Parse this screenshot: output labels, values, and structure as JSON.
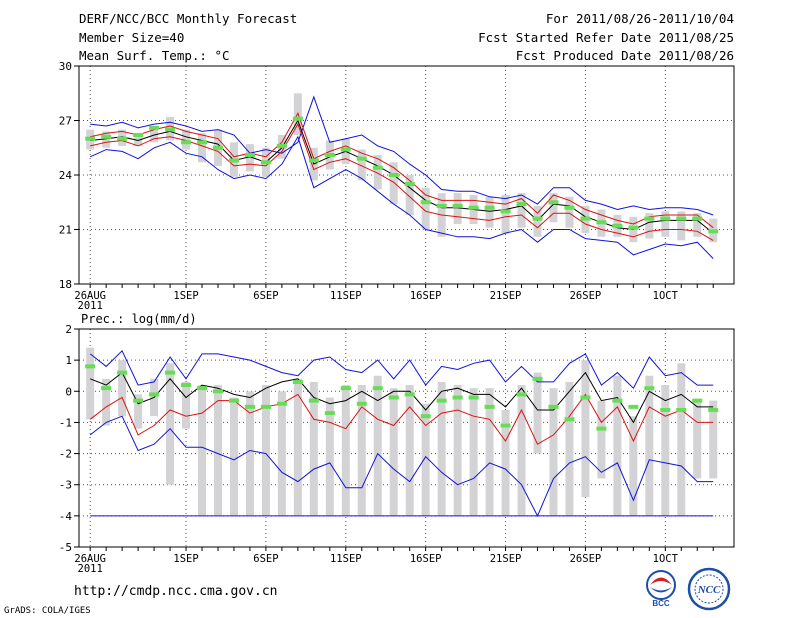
{
  "header": {
    "title": "DERF/NCC/BCC Monthly Forecast",
    "member_size": "Member Size=40",
    "variable": "Mean Surf. Temp.: °C",
    "period": "For 2011/08/26-2011/10/04",
    "started": "Fcst Started Refer Date 2011/08/25",
    "produced": "Fcst Produced Date 2011/08/26"
  },
  "footer": {
    "url": "http://cmdp.ncc.cma.gov.cn",
    "grads": "GrADS: COLA/IGES",
    "logo1_label": "BCC",
    "logo2_label": "NCC"
  },
  "colors": {
    "box": "#d3d3d6",
    "median": "#66dd55",
    "mean": "#000000",
    "std": "#dd1111",
    "extreme": "#1111dd",
    "grid": "#555555"
  },
  "chart_data": [
    {
      "type": "line",
      "title": "Mean Surf. Temp.: °C",
      "ylim": [
        18,
        30
      ],
      "yticks": [
        "18",
        "21",
        "24",
        "27",
        "30"
      ],
      "x": [
        1,
        2,
        3,
        4,
        5,
        6,
        7,
        8,
        9,
        10,
        11,
        12,
        13,
        14,
        15,
        16,
        17,
        18,
        19,
        20,
        21,
        22,
        23,
        24,
        25,
        26,
        27,
        28,
        29,
        30,
        31,
        32,
        33,
        34,
        35,
        36,
        37,
        38,
        39,
        40
      ],
      "xtick_labels": [
        "26AUG",
        "1SEP",
        "6SEP",
        "11SEP",
        "16SEP",
        "21SEP",
        "26SEP",
        "1OCT"
      ],
      "xtick_days": [
        1,
        7,
        12,
        17,
        22,
        27,
        32,
        37
      ],
      "xtick_sublabel": "2011",
      "series": [
        {
          "name": "max",
          "values": [
            26.8,
            26.7,
            26.9,
            26.6,
            26.8,
            26.9,
            26.7,
            26.4,
            26.5,
            26.2,
            25.2,
            25.4,
            25.2,
            25.8,
            28.3,
            25.8,
            26.0,
            26.2,
            25.6,
            25.3,
            24.6,
            24.0,
            23.2,
            23.1,
            23.1,
            22.8,
            22.7,
            22.9,
            22.4,
            23.3,
            23.3,
            22.6,
            22.4,
            22.1,
            22.3,
            22.1,
            22.2,
            22.2,
            22.1,
            21.8
          ]
        },
        {
          "name": "mean_plus_std",
          "values": [
            26.1,
            26.3,
            26.4,
            26.2,
            26.5,
            26.7,
            26.4,
            26.2,
            26.0,
            25.0,
            25.2,
            25.0,
            25.8,
            27.4,
            24.9,
            25.3,
            25.6,
            25.2,
            24.9,
            24.4,
            23.7,
            22.9,
            22.6,
            22.6,
            22.6,
            22.5,
            22.4,
            22.7,
            21.9,
            22.9,
            22.6,
            22.1,
            21.8,
            21.5,
            21.3,
            21.7,
            21.8,
            21.8,
            21.8,
            21.1
          ]
        },
        {
          "name": "mean",
          "values": [
            25.9,
            26.0,
            26.1,
            25.9,
            26.2,
            26.4,
            26.1,
            25.9,
            25.7,
            24.8,
            25.0,
            24.7,
            25.5,
            27.0,
            24.6,
            25.0,
            25.3,
            24.9,
            24.5,
            24.0,
            23.3,
            22.6,
            22.2,
            22.2,
            22.1,
            22.0,
            22.1,
            22.3,
            21.5,
            22.4,
            22.3,
            21.7,
            21.4,
            21.1,
            21.0,
            21.4,
            21.5,
            21.5,
            21.5,
            20.8
          ]
        },
        {
          "name": "median",
          "values": [
            26.0,
            26.1,
            26.0,
            26.2,
            26.6,
            26.5,
            25.8,
            25.8,
            25.5,
            24.8,
            25.1,
            24.7,
            25.6,
            27.1,
            24.8,
            25.1,
            25.4,
            24.9,
            24.4,
            24.0,
            23.5,
            22.5,
            22.3,
            22.3,
            22.2,
            22.2,
            22.0,
            22.4,
            21.6,
            22.5,
            22.2,
            21.6,
            21.4,
            21.2,
            21.1,
            21.6,
            21.6,
            21.6,
            21.6,
            20.9
          ]
        },
        {
          "name": "mean_minus_std",
          "values": [
            25.6,
            25.8,
            25.9,
            25.6,
            26.0,
            26.1,
            25.9,
            25.6,
            25.3,
            24.5,
            24.6,
            24.5,
            25.3,
            26.8,
            24.3,
            24.7,
            24.9,
            24.5,
            24.1,
            23.6,
            22.8,
            22.0,
            21.8,
            21.7,
            21.6,
            21.5,
            21.7,
            21.8,
            21.1,
            21.9,
            21.9,
            21.3,
            21.0,
            20.8,
            20.6,
            20.9,
            21.0,
            21.0,
            20.9,
            20.4
          ]
        },
        {
          "name": "min",
          "values": [
            25.0,
            25.4,
            25.3,
            24.9,
            25.5,
            25.8,
            25.2,
            25.0,
            24.3,
            23.8,
            24.0,
            23.8,
            24.6,
            26.1,
            23.3,
            23.8,
            24.3,
            23.8,
            23.1,
            22.4,
            21.8,
            21.0,
            20.8,
            20.6,
            20.6,
            20.5,
            20.8,
            21.0,
            20.3,
            21.0,
            21.0,
            20.5,
            20.4,
            20.3,
            19.6,
            19.9,
            20.2,
            20.1,
            20.3,
            19.4
          ]
        },
        {
          "name": "box_top",
          "values": [
            26.5,
            26.4,
            26.5,
            26.3,
            26.6,
            27.2,
            26.5,
            26.3,
            26.5,
            25.8,
            25.7,
            25.5,
            26.2,
            28.5,
            25.5,
            25.9,
            26.0,
            25.4,
            25.1,
            24.7,
            24.0,
            23.3,
            23.0,
            23.0,
            22.9,
            22.8,
            22.9,
            23.0,
            22.3,
            23.0,
            22.8,
            22.3,
            22.1,
            21.8,
            21.7,
            21.9,
            22.0,
            22.0,
            21.9,
            21.6
          ]
        },
        {
          "name": "box_bottom",
          "values": [
            25.4,
            25.5,
            25.6,
            25.6,
            25.8,
            25.9,
            25.4,
            24.7,
            24.5,
            23.9,
            24.2,
            23.9,
            24.9,
            26.2,
            23.7,
            24.3,
            24.6,
            23.7,
            23.2,
            22.4,
            21.8,
            21.0,
            20.6,
            21.3,
            21.3,
            21.1,
            20.8,
            21.1,
            20.6,
            21.4,
            21.1,
            20.8,
            20.6,
            20.6,
            20.3,
            20.5,
            20.6,
            20.4,
            20.6,
            20.3
          ]
        }
      ]
    },
    {
      "type": "line",
      "title": "Prec.: log(mm/d)",
      "ylim": [
        -5,
        2
      ],
      "yticks": [
        "-5",
        "-4",
        "-3",
        "-2",
        "-1",
        "0",
        "1",
        "2"
      ],
      "x": [
        1,
        2,
        3,
        4,
        5,
        6,
        7,
        8,
        9,
        10,
        11,
        12,
        13,
        14,
        15,
        16,
        17,
        18,
        19,
        20,
        21,
        22,
        23,
        24,
        25,
        26,
        27,
        28,
        29,
        30,
        31,
        32,
        33,
        34,
        35,
        36,
        37,
        38,
        39,
        40
      ],
      "xtick_labels": [
        "26AUG",
        "1SEP",
        "6SEP",
        "11SEP",
        "16SEP",
        "21SEP",
        "26SEP",
        "1OCT"
      ],
      "xtick_days": [
        1,
        7,
        12,
        17,
        22,
        27,
        32,
        37
      ],
      "xtick_sublabel": "2011",
      "series": [
        {
          "name": "max",
          "values": [
            1.2,
            0.8,
            1.3,
            0.2,
            0.3,
            1.1,
            0.4,
            1.2,
            1.2,
            1.1,
            1.0,
            0.8,
            0.6,
            0.5,
            1.0,
            1.1,
            0.7,
            0.6,
            1.0,
            0.4,
            1.0,
            0.2,
            0.8,
            0.7,
            0.9,
            1.0,
            0.3,
            0.8,
            0.3,
            0.3,
            0.9,
            1.2,
            0.2,
            0.6,
            0.1,
            1.1,
            0.5,
            0.6,
            0.2,
            0.2
          ]
        },
        {
          "name": "mean",
          "values": [
            0.4,
            0.2,
            0.6,
            -0.4,
            -0.2,
            0.4,
            -0.2,
            0.2,
            0.1,
            -0.1,
            -0.2,
            0.1,
            0.3,
            0.4,
            -0.2,
            -0.4,
            -0.3,
            0.0,
            -0.3,
            0.0,
            0.0,
            -0.6,
            0.0,
            0.1,
            -0.1,
            -0.1,
            -0.5,
            0.1,
            -0.6,
            -0.6,
            0.0,
            0.6,
            -0.3,
            -0.2,
            -1.0,
            0.0,
            -0.3,
            -0.1,
            -0.5,
            -0.5
          ]
        },
        {
          "name": "median",
          "values": [
            0.8,
            0.1,
            0.6,
            -0.3,
            -0.1,
            0.6,
            0.2,
            0.1,
            0.0,
            -0.3,
            -0.5,
            -0.5,
            -0.4,
            0.3,
            -0.3,
            -0.7,
            0.1,
            -0.4,
            0.1,
            -0.2,
            -0.1,
            -0.8,
            -0.3,
            -0.2,
            -0.2,
            -0.5,
            -1.1,
            -0.1,
            0.4,
            -0.5,
            -0.9,
            -0.2,
            -1.2,
            -0.3,
            -0.5,
            0.1,
            -0.6,
            -0.6,
            -0.3,
            -0.6
          ]
        },
        {
          "name": "mean_minus_std",
          "values": [
            -0.9,
            -0.5,
            -0.2,
            -1.4,
            -1.1,
            -0.6,
            -0.8,
            -0.7,
            -0.3,
            -0.3,
            -0.7,
            -0.5,
            -0.4,
            -0.1,
            -0.9,
            -1.0,
            -1.2,
            -0.5,
            -0.9,
            -1.1,
            -0.5,
            -1.1,
            -0.7,
            -0.6,
            -0.8,
            -0.9,
            -1.6,
            -0.6,
            -1.7,
            -1.4,
            -0.8,
            -0.1,
            -1.0,
            -0.5,
            -1.6,
            -0.5,
            -0.8,
            -0.6,
            -1.0,
            -1.0
          ]
        },
        {
          "name": "min",
          "values": [
            -1.4,
            -1.0,
            -0.8,
            -1.9,
            -1.7,
            -1.2,
            -1.8,
            -1.8,
            -2.0,
            -2.2,
            -1.9,
            -2.0,
            -2.6,
            -2.9,
            -2.5,
            -2.3,
            -3.1,
            -3.1,
            -2.0,
            -2.5,
            -2.9,
            -2.1,
            -2.6,
            -3.0,
            -2.8,
            -2.3,
            -2.5,
            -3.0,
            -4.0,
            -2.8,
            -2.3,
            -2.1,
            -2.6,
            -2.3,
            -3.5,
            -2.2,
            -2.3,
            -2.4,
            -2.9,
            -2.9
          ]
        },
        {
          "name": "floor",
          "values": [
            -4,
            -4,
            -4,
            -4,
            -4,
            -4,
            -4,
            -4,
            -4,
            -4,
            -4,
            -4,
            -4,
            -4,
            -4,
            -4,
            -4,
            -4,
            -4,
            -4,
            -4,
            -4,
            -4,
            -4,
            -4,
            -4,
            -4,
            -4,
            -4,
            -4,
            -4,
            -4,
            -4,
            -4,
            -4,
            -4,
            -4,
            -4,
            -4,
            -4
          ]
        },
        {
          "name": "box_top",
          "values": [
            1.4,
            0.4,
            1.0,
            -0.1,
            0.4,
            0.9,
            0.3,
            0.2,
            0.2,
            -0.2,
            0.0,
            0.2,
            0.0,
            0.4,
            0.3,
            -0.2,
            0.2,
            0.2,
            0.5,
            0.1,
            0.2,
            -0.4,
            0.3,
            0.2,
            0.1,
            0.1,
            -0.6,
            0.2,
            0.6,
            0.1,
            0.3,
            1.0,
            -0.3,
            0.5,
            -0.8,
            0.5,
            0.2,
            0.9,
            -0.3,
            -0.3
          ]
        },
        {
          "name": "box_bottom",
          "values": [
            -0.9,
            -1.1,
            -0.8,
            -1.2,
            -0.8,
            -3.0,
            -1.2,
            -4.0,
            -4.0,
            -4.0,
            -4.0,
            -4.0,
            -4.0,
            -4.0,
            -4.0,
            -4.0,
            -4.0,
            -4.0,
            -4.0,
            -4.0,
            -4.0,
            -4.0,
            -4.0,
            -4.0,
            -4.0,
            -4.0,
            -4.0,
            -4.0,
            -2.0,
            -4.0,
            -4.0,
            -3.4,
            -2.8,
            -4.0,
            -4.0,
            -4.0,
            -4.0,
            -4.0,
            -2.8,
            -2.8
          ]
        }
      ]
    }
  ]
}
